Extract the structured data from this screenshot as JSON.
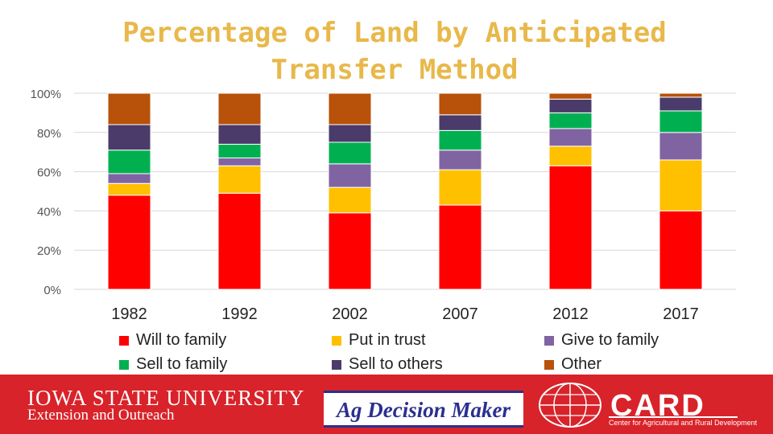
{
  "chart_data": {
    "type": "bar",
    "stacked": true,
    "title": "Percentage of Land by Anticipated Transfer Method",
    "title_lines": [
      "Percentage of Land by Anticipated",
      "Transfer Method"
    ],
    "categories": [
      "1982",
      "1992",
      "2002",
      "2007",
      "2012",
      "2017"
    ],
    "ylim": [
      0,
      100
    ],
    "yticks": [
      "0%",
      "20%",
      "40%",
      "60%",
      "80%",
      "100%"
    ],
    "yticks_values": [
      0,
      20,
      40,
      60,
      80,
      100
    ],
    "legend_position": "bottom",
    "series": [
      {
        "name": "Will to family",
        "color": "#ff0000",
        "values": [
          48,
          49,
          39,
          43,
          63,
          40
        ]
      },
      {
        "name": "Put in trust",
        "color": "#ffc000",
        "values": [
          6,
          14,
          13,
          18,
          10,
          26
        ]
      },
      {
        "name": "Give to family",
        "color": "#8064a2",
        "values": [
          5,
          4,
          12,
          10,
          9,
          14
        ]
      },
      {
        "name": "Sell to family",
        "color": "#00b050",
        "values": [
          12,
          7,
          11,
          10,
          8,
          11
        ]
      },
      {
        "name": "Sell to others",
        "color": "#4b3b6b",
        "values": [
          13,
          10,
          9,
          8,
          7,
          7
        ]
      },
      {
        "name": "Other",
        "color": "#b8510a",
        "values": [
          16,
          16,
          16,
          11,
          3,
          2
        ]
      }
    ]
  },
  "footer": {
    "isu_line1": "IOWA STATE UNIVERSITY",
    "isu_line2": "Extension and Outreach",
    "ag_decision_maker": "Ag Decision Maker",
    "card": "CARD",
    "card_sub": "Center for Agricultural and Rural Development",
    "bg_color": "#d8232a"
  }
}
